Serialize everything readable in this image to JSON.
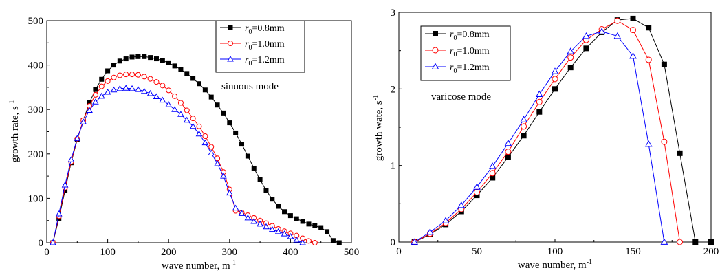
{
  "chart_data": [
    {
      "type": "line",
      "title": "",
      "xlabel": "wave number, m",
      "xlabel_sup": "-1",
      "ylabel": "growth rate, s",
      "ylabel_sup": "-1",
      "xlim": [
        0,
        500
      ],
      "ylim": [
        0,
        500
      ],
      "xticks": [
        "0",
        "100",
        "200",
        "300",
        "400",
        "500"
      ],
      "yticks": [
        "0",
        "100",
        "200",
        "300",
        "400",
        "500"
      ],
      "annotation": "sinuous mode",
      "legend_position": "top-right",
      "series": [
        {
          "name_prefix": "r",
          "name_sub": "0",
          "name_suffix": "=0.8mm",
          "color": "#000000",
          "marker": "square-filled",
          "x": [
            10,
            20,
            30,
            40,
            50,
            60,
            70,
            80,
            90,
            100,
            110,
            120,
            130,
            140,
            150,
            160,
            170,
            180,
            190,
            200,
            210,
            220,
            230,
            240,
            250,
            260,
            270,
            280,
            290,
            300,
            310,
            320,
            330,
            340,
            350,
            360,
            370,
            380,
            390,
            400,
            410,
            420,
            430,
            440,
            450,
            460,
            470,
            480
          ],
          "y": [
            0,
            55,
            118,
            180,
            232,
            276,
            315,
            345,
            368,
            387,
            400,
            409,
            414,
            418,
            419,
            419,
            417,
            414,
            410,
            405,
            398,
            390,
            381,
            370,
            358,
            344,
            328,
            310,
            292,
            270,
            247,
            222,
            195,
            168,
            142,
            118,
            98,
            82,
            70,
            61,
            54,
            48,
            42,
            38,
            34,
            25,
            5,
            0
          ]
        },
        {
          "name_prefix": "r",
          "name_sub": "0",
          "name_suffix": "=1.0mm",
          "color": "#ff0000",
          "marker": "circle-open",
          "x": [
            10,
            20,
            30,
            40,
            50,
            60,
            70,
            80,
            90,
            100,
            110,
            120,
            130,
            140,
            150,
            160,
            170,
            180,
            190,
            200,
            210,
            220,
            230,
            240,
            250,
            260,
            270,
            280,
            290,
            300,
            310,
            320,
            330,
            340,
            350,
            360,
            370,
            380,
            390,
            400,
            410,
            420,
            430,
            440
          ],
          "y": [
            0,
            60,
            124,
            182,
            234,
            276,
            308,
            333,
            352,
            364,
            372,
            377,
            379,
            379,
            378,
            374,
            369,
            362,
            354,
            343,
            330,
            315,
            298,
            280,
            262,
            240,
            216,
            190,
            159,
            120,
            72,
            68,
            62,
            56,
            50,
            44,
            38,
            31,
            26,
            21,
            16,
            10,
            4,
            0
          ]
        },
        {
          "name_prefix": "r",
          "name_sub": "0",
          "name_suffix": "=1.2mm",
          "color": "#0000ff",
          "marker": "triangle-open",
          "x": [
            10,
            20,
            30,
            40,
            50,
            60,
            70,
            80,
            90,
            100,
            110,
            120,
            130,
            140,
            150,
            160,
            170,
            180,
            190,
            200,
            210,
            220,
            230,
            240,
            250,
            260,
            270,
            280,
            290,
            300,
            310,
            320,
            330,
            340,
            350,
            360,
            370,
            380,
            390,
            400,
            410,
            420
          ],
          "y": [
            0,
            65,
            130,
            187,
            235,
            272,
            298,
            317,
            330,
            339,
            344,
            347,
            348,
            347,
            345,
            341,
            336,
            329,
            321,
            311,
            300,
            289,
            276,
            262,
            245,
            225,
            202,
            178,
            150,
            112,
            78,
            66,
            56,
            48,
            42,
            36,
            30,
            25,
            20,
            14,
            6,
            0
          ]
        }
      ]
    },
    {
      "type": "line",
      "title": "",
      "xlabel": "wave number, m",
      "xlabel_sup": "-1",
      "ylabel": "growth wate, s",
      "ylabel_sup": "-1",
      "xlim": [
        0,
        200
      ],
      "ylim": [
        0,
        3
      ],
      "xticks": [
        "0",
        "50",
        "100",
        "150",
        "200"
      ],
      "yticks": [
        "0",
        "1",
        "2",
        "3"
      ],
      "annotation": "varicose mode",
      "legend_position": "top-left",
      "series": [
        {
          "name_prefix": "r",
          "name_sub": "0",
          "name_suffix": "=0.8mm",
          "color": "#000000",
          "marker": "square-filled",
          "x": [
            10,
            20,
            30,
            40,
            50,
            60,
            70,
            80,
            90,
            100,
            110,
            120,
            130,
            140,
            150,
            160,
            170,
            180,
            190,
            200
          ],
          "y": [
            0,
            0.1,
            0.23,
            0.4,
            0.61,
            0.84,
            1.11,
            1.39,
            1.7,
            2.0,
            2.28,
            2.53,
            2.74,
            2.9,
            2.92,
            2.8,
            2.32,
            1.16,
            0,
            0
          ]
        },
        {
          "name_prefix": "r",
          "name_sub": "0",
          "name_suffix": "=1.0mm",
          "color": "#ff0000",
          "marker": "circle-open",
          "x": [
            10,
            20,
            30,
            40,
            50,
            60,
            70,
            80,
            90,
            100,
            110,
            120,
            130,
            140,
            150,
            160,
            170,
            180
          ],
          "y": [
            0,
            0.11,
            0.25,
            0.43,
            0.65,
            0.9,
            1.18,
            1.51,
            1.83,
            2.13,
            2.41,
            2.64,
            2.78,
            2.89,
            2.77,
            2.38,
            1.31,
            0
          ]
        },
        {
          "name_prefix": "r",
          "name_sub": "0",
          "name_suffix": "=1.2mm",
          "color": "#0000ff",
          "marker": "triangle-open",
          "x": [
            10,
            20,
            30,
            40,
            50,
            60,
            70,
            80,
            90,
            100,
            110,
            120,
            130,
            140,
            150,
            160,
            170
          ],
          "y": [
            0,
            0.13,
            0.28,
            0.48,
            0.72,
            0.99,
            1.29,
            1.6,
            1.93,
            2.23,
            2.49,
            2.69,
            2.75,
            2.69,
            2.43,
            1.28,
            0
          ]
        }
      ]
    }
  ]
}
